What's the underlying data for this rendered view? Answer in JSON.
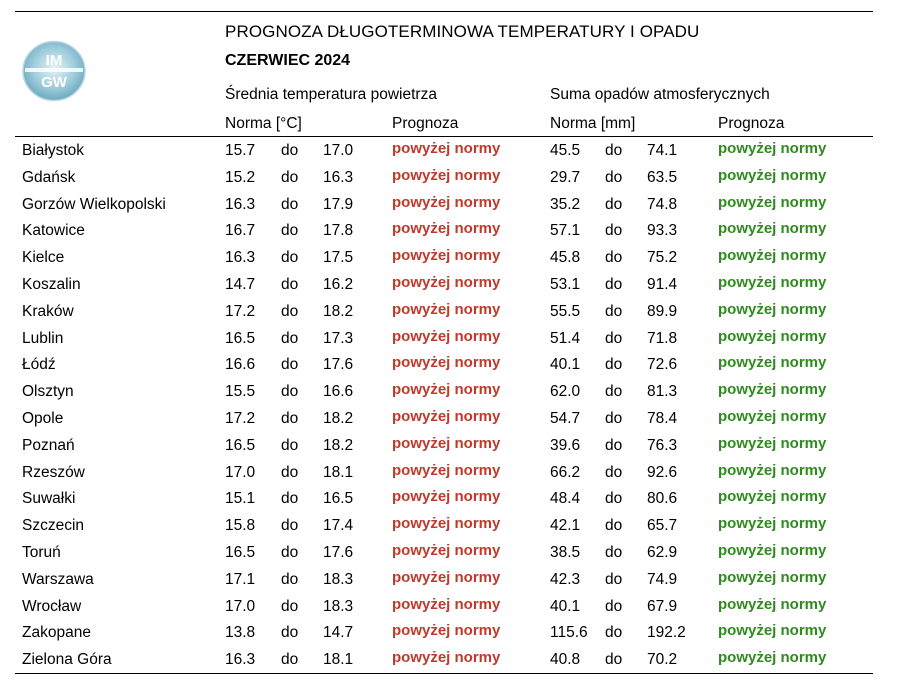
{
  "logo": {
    "text_top": "IM",
    "text_bottom": "GW"
  },
  "title": "PROGNOZA DŁUGOTERMINOWA TEMPERATURY I OPADU",
  "subtitle": "CZERWIEC 2024",
  "sections": {
    "temperature": "Średnia temperatura powietrza",
    "precipitation": "Suma opadów atmosferycznych"
  },
  "headers": {
    "temp_norm": "Norma [°C]",
    "temp_forecast": "Prognoza",
    "precip_norm": "Norma [mm]",
    "precip_forecast": "Prognoza"
  },
  "colors": {
    "temp_forecast": "#c0392b",
    "precip_forecast": "#2e8b1e"
  },
  "rows": [
    {
      "city": "Białystok",
      "t_min": "15.7",
      "t_do": "do",
      "t_max": "17.0",
      "t_prog": "powyżej normy",
      "p_min": "45.5",
      "p_do": "do",
      "p_max": "74.1",
      "p_prog": "powyżej normy"
    },
    {
      "city": "Gdańsk",
      "t_min": "15.2",
      "t_do": "do",
      "t_max": "16.3",
      "t_prog": "powyżej normy",
      "p_min": "29.7",
      "p_do": "do",
      "p_max": "63.5",
      "p_prog": "powyżej normy"
    },
    {
      "city": "Gorzów Wielkopolski",
      "t_min": "16.3",
      "t_do": "do",
      "t_max": "17.9",
      "t_prog": "powyżej normy",
      "p_min": "35.2",
      "p_do": "do",
      "p_max": "74.8",
      "p_prog": "powyżej normy"
    },
    {
      "city": "Katowice",
      "t_min": "16.7",
      "t_do": "do",
      "t_max": "17.8",
      "t_prog": "powyżej normy",
      "p_min": "57.1",
      "p_do": "do",
      "p_max": "93.3",
      "p_prog": "powyżej normy"
    },
    {
      "city": "Kielce",
      "t_min": "16.3",
      "t_do": "do",
      "t_max": "17.5",
      "t_prog": "powyżej normy",
      "p_min": "45.8",
      "p_do": "do",
      "p_max": "75.2",
      "p_prog": "powyżej normy"
    },
    {
      "city": "Koszalin",
      "t_min": "14.7",
      "t_do": "do",
      "t_max": "16.2",
      "t_prog": "powyżej normy",
      "p_min": "53.1",
      "p_do": "do",
      "p_max": "91.4",
      "p_prog": "powyżej normy"
    },
    {
      "city": "Kraków",
      "t_min": "17.2",
      "t_do": "do",
      "t_max": "18.2",
      "t_prog": "powyżej normy",
      "p_min": "55.5",
      "p_do": "do",
      "p_max": "89.9",
      "p_prog": "powyżej normy"
    },
    {
      "city": "Lublin",
      "t_min": "16.5",
      "t_do": "do",
      "t_max": "17.3",
      "t_prog": "powyżej normy",
      "p_min": "51.4",
      "p_do": "do",
      "p_max": "71.8",
      "p_prog": "powyżej normy"
    },
    {
      "city": "Łódź",
      "t_min": "16.6",
      "t_do": "do",
      "t_max": "17.6",
      "t_prog": "powyżej normy",
      "p_min": "40.1",
      "p_do": "do",
      "p_max": "72.6",
      "p_prog": "powyżej normy"
    },
    {
      "city": "Olsztyn",
      "t_min": "15.5",
      "t_do": "do",
      "t_max": "16.6",
      "t_prog": "powyżej normy",
      "p_min": "62.0",
      "p_do": "do",
      "p_max": "81.3",
      "p_prog": "powyżej normy"
    },
    {
      "city": "Opole",
      "t_min": "17.2",
      "t_do": "do",
      "t_max": "18.2",
      "t_prog": "powyżej normy",
      "p_min": "54.7",
      "p_do": "do",
      "p_max": "78.4",
      "p_prog": "powyżej normy"
    },
    {
      "city": "Poznań",
      "t_min": "16.5",
      "t_do": "do",
      "t_max": "18.2",
      "t_prog": "powyżej normy",
      "p_min": "39.6",
      "p_do": "do",
      "p_max": "76.3",
      "p_prog": "powyżej normy"
    },
    {
      "city": "Rzeszów",
      "t_min": "17.0",
      "t_do": "do",
      "t_max": "18.1",
      "t_prog": "powyżej normy",
      "p_min": "66.2",
      "p_do": "do",
      "p_max": "92.6",
      "p_prog": "powyżej normy"
    },
    {
      "city": "Suwałki",
      "t_min": "15.1",
      "t_do": "do",
      "t_max": "16.5",
      "t_prog": "powyżej normy",
      "p_min": "48.4",
      "p_do": "do",
      "p_max": "80.6",
      "p_prog": "powyżej normy"
    },
    {
      "city": "Szczecin",
      "t_min": "15.8",
      "t_do": "do",
      "t_max": "17.4",
      "t_prog": "powyżej normy",
      "p_min": "42.1",
      "p_do": "do",
      "p_max": "65.7",
      "p_prog": "powyżej normy"
    },
    {
      "city": "Toruń",
      "t_min": "16.5",
      "t_do": "do",
      "t_max": "17.6",
      "t_prog": "powyżej normy",
      "p_min": "38.5",
      "p_do": "do",
      "p_max": "62.9",
      "p_prog": "powyżej normy"
    },
    {
      "city": "Warszawa",
      "t_min": "17.1",
      "t_do": "do",
      "t_max": "18.3",
      "t_prog": "powyżej normy",
      "p_min": "42.3",
      "p_do": "do",
      "p_max": "74.9",
      "p_prog": "powyżej normy"
    },
    {
      "city": "Wrocław",
      "t_min": "17.0",
      "t_do": "do",
      "t_max": "18.3",
      "t_prog": "powyżej normy",
      "p_min": "40.1",
      "p_do": "do",
      "p_max": "67.9",
      "p_prog": "powyżej normy"
    },
    {
      "city": "Zakopane",
      "t_min": "13.8",
      "t_do": "do",
      "t_max": "14.7",
      "t_prog": "powyżej normy",
      "p_min": "115.6",
      "p_do": "do",
      "p_max": "192.2",
      "p_prog": "powyżej normy"
    },
    {
      "city": "Zielona Góra",
      "t_min": "16.3",
      "t_do": "do",
      "t_max": "18.1",
      "t_prog": "powyżej normy",
      "p_min": "40.8",
      "p_do": "do",
      "p_max": "70.2",
      "p_prog": "powyżej normy"
    }
  ]
}
